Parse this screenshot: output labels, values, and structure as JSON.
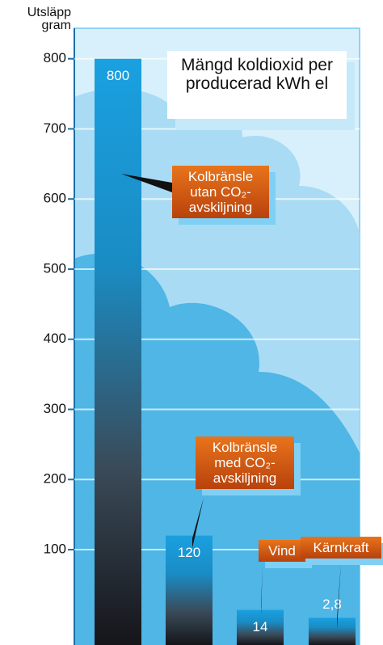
{
  "chart_data": {
    "type": "bar",
    "title": "Mängd koldioxid per producerad kWh el",
    "y_label": "Utsläpp gram",
    "categories": [
      "Kolbränsle utan CO₂-avskiljning",
      "Kolbränsle med CO₂-avskiljning",
      "Vind",
      "Kärnkraft"
    ],
    "values": [
      800,
      120,
      14,
      2.8
    ],
    "value_labels": [
      "800",
      "120",
      "14",
      "2,8"
    ],
    "ylim": [
      -36,
      840
    ],
    "yticks": [
      100,
      200,
      300,
      400,
      500,
      600,
      700,
      800
    ],
    "grid": true
  }
}
